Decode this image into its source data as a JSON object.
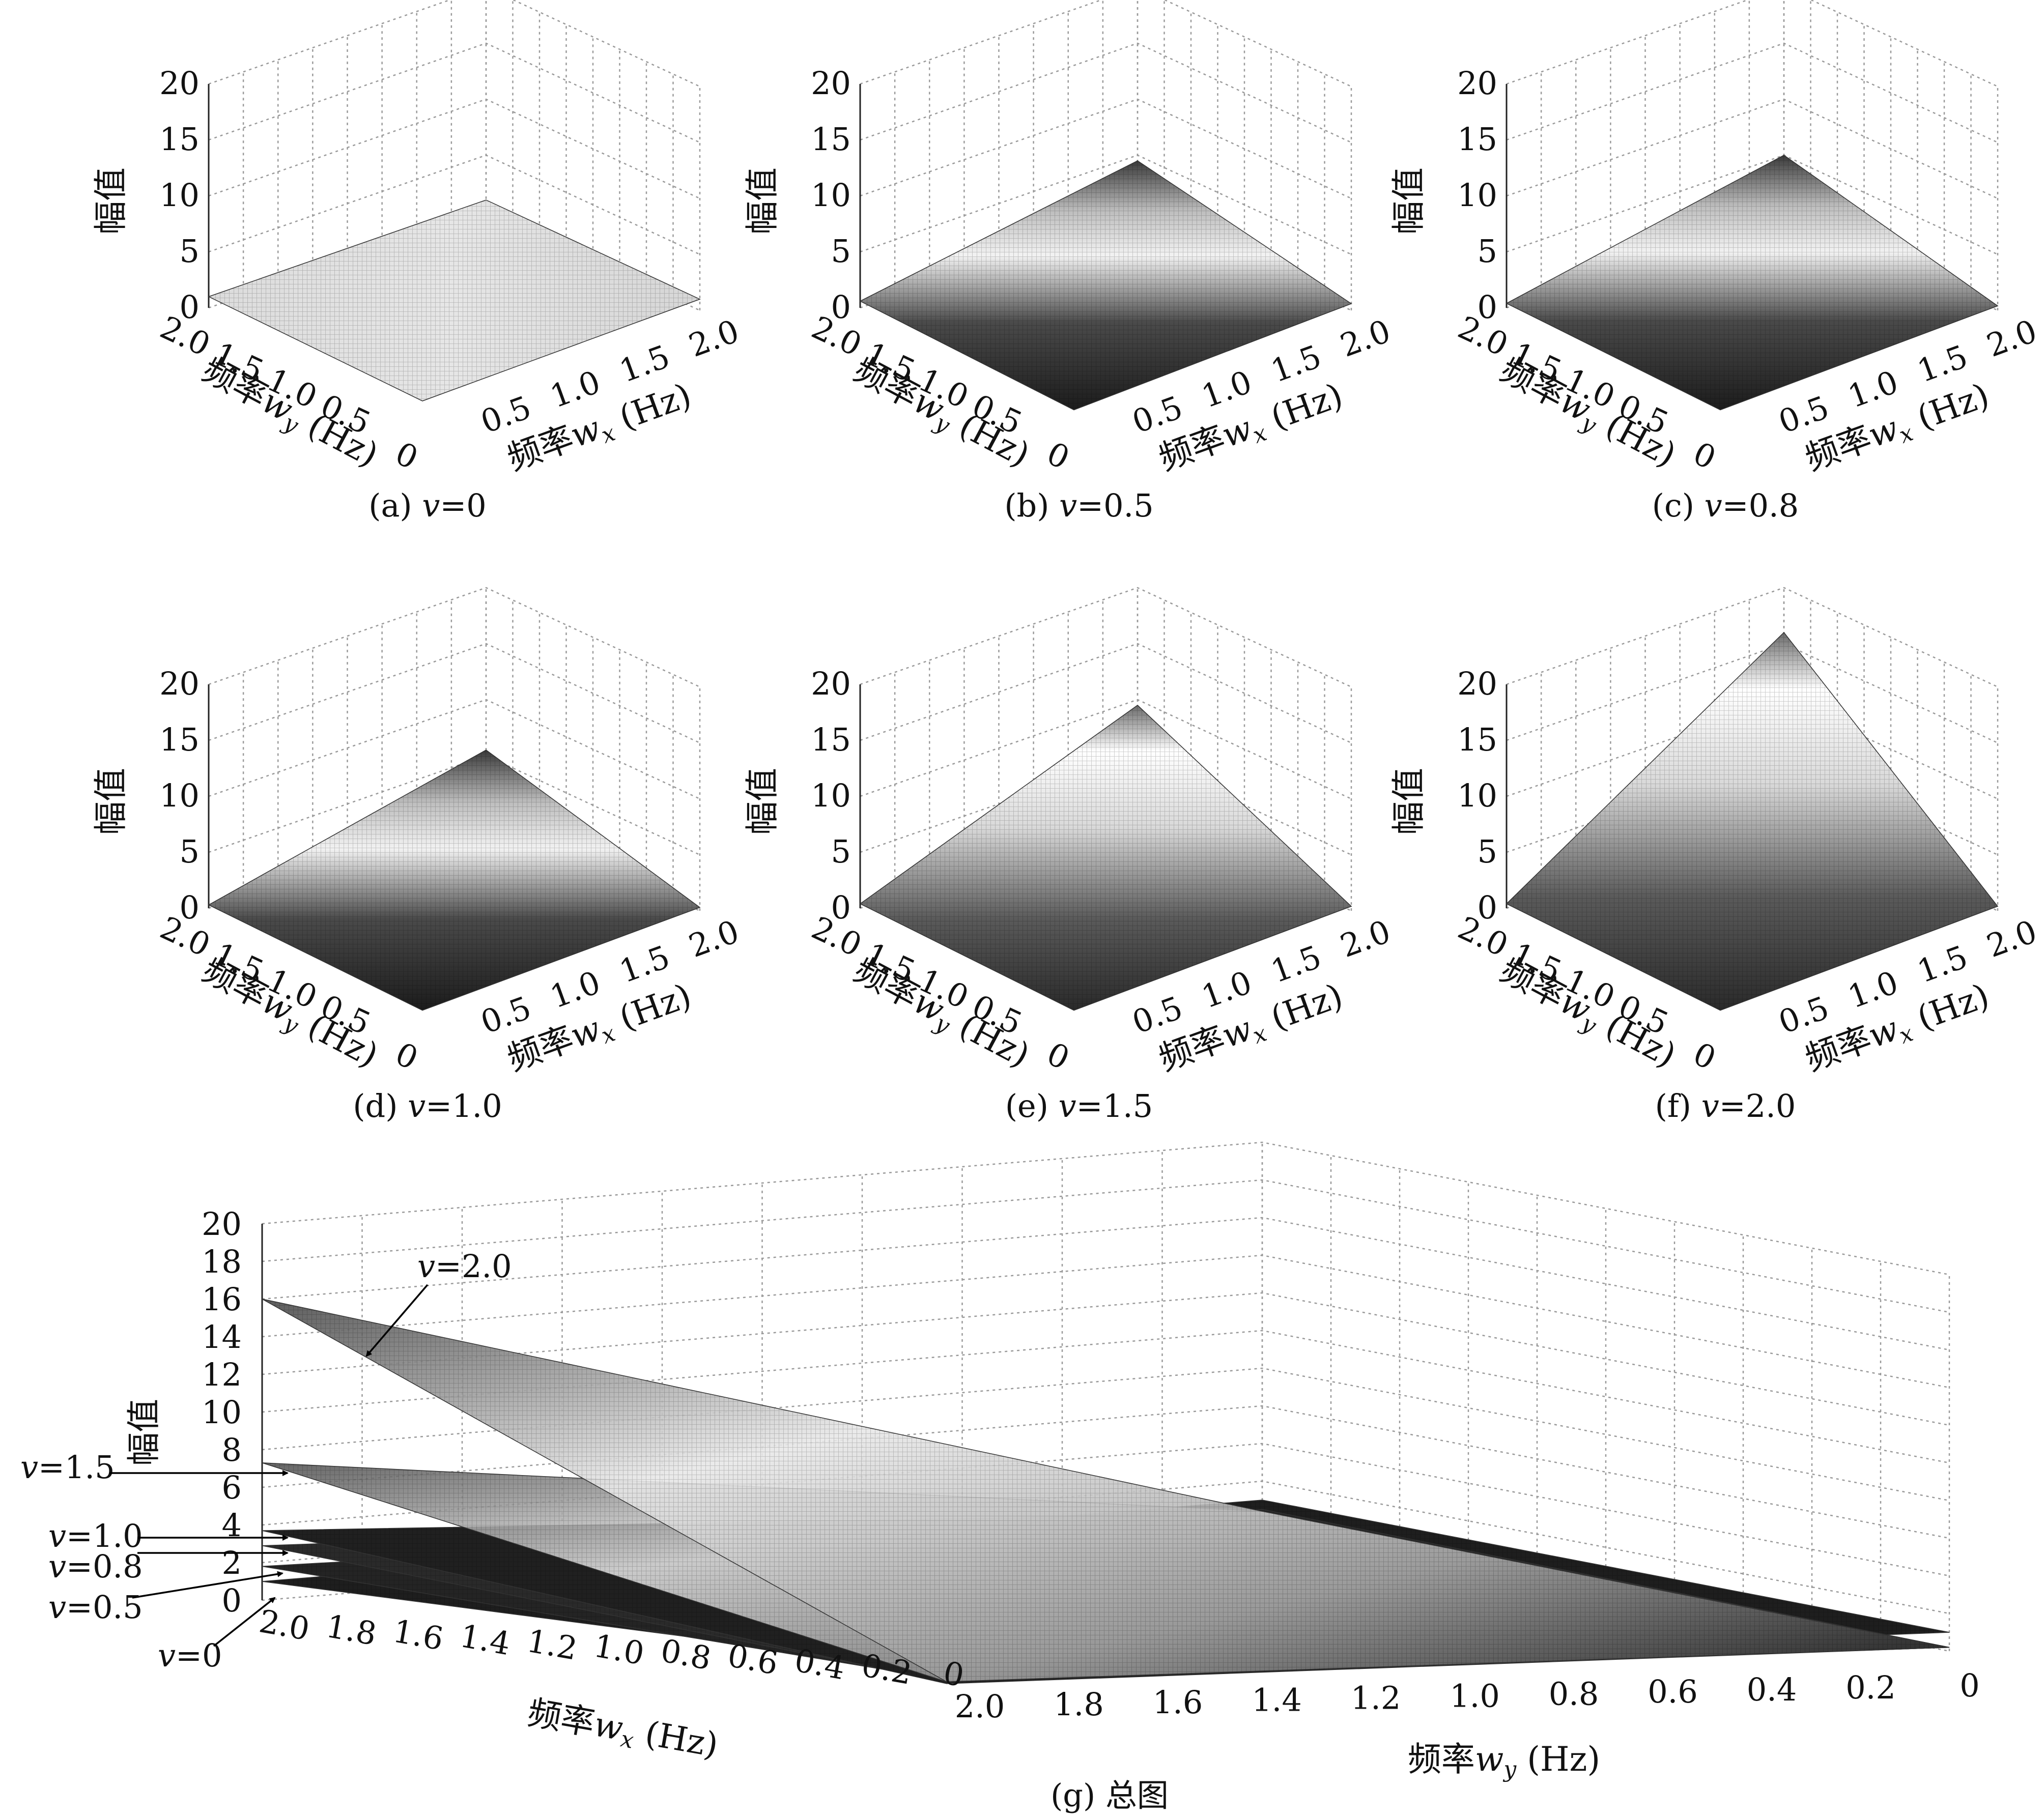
{
  "chart_data": [
    {
      "id": "a",
      "type": "surface",
      "caption": "(a) v=0",
      "v": 0,
      "zlabel": "幅值",
      "xlabel": "频率w_x (Hz)",
      "ylabel": "频率w_y (Hz)",
      "x_range": [
        0,
        2.0
      ],
      "y_range": [
        0,
        2.0
      ],
      "z_range": [
        0,
        20
      ],
      "x_ticks": [
        "0.5",
        "1.0",
        "1.5",
        "2.0"
      ],
      "y_ticks": [
        "2.0",
        "1.5",
        "1.0",
        "0.5",
        "0"
      ],
      "z_ticks": [
        "0",
        "5",
        "10",
        "15",
        "20"
      ],
      "corners_z": {
        "origin": 1.0,
        "x_max": 1.0,
        "y_max": 1.0,
        "xy_max": 1.0
      }
    },
    {
      "id": "b",
      "type": "surface",
      "caption": "(b) v=0.5",
      "v": 0.5,
      "zlabel": "幅值",
      "xlabel": "频率w_x (Hz)",
      "ylabel": "频率w_y (Hz)",
      "x_range": [
        0,
        2.0
      ],
      "y_range": [
        0,
        2.0
      ],
      "z_range": [
        0,
        20
      ],
      "x_ticks": [
        "0.5",
        "1.0",
        "1.5",
        "2.0"
      ],
      "y_ticks": [
        "2.0",
        "1.5",
        "1.0",
        "0.5",
        "0"
      ],
      "z_ticks": [
        "0",
        "5",
        "10",
        "15",
        "20"
      ],
      "corners_z": {
        "origin": 0.2,
        "x_max": 0.6,
        "y_max": 0.6,
        "xy_max": 4.5
      }
    },
    {
      "id": "c",
      "type": "surface",
      "caption": "(c) v=0.8",
      "v": 0.8,
      "zlabel": "幅值",
      "xlabel": "频率w_x (Hz)",
      "ylabel": "频率w_y (Hz)",
      "x_range": [
        0,
        2.0
      ],
      "y_range": [
        0,
        2.0
      ],
      "z_range": [
        0,
        20
      ],
      "x_ticks": [
        "0.5",
        "1.0",
        "1.5",
        "2.0"
      ],
      "y_ticks": [
        "2.0",
        "1.5",
        "1.0",
        "0.5",
        "0"
      ],
      "z_ticks": [
        "0",
        "5",
        "10",
        "15",
        "20"
      ],
      "corners_z": {
        "origin": 0.2,
        "x_max": 0.4,
        "y_max": 0.4,
        "xy_max": 5.0
      }
    },
    {
      "id": "d",
      "type": "surface",
      "caption": "(d) v=1.0",
      "v": 1.0,
      "zlabel": "幅值",
      "xlabel": "频率w_x (Hz)",
      "ylabel": "频率w_y (Hz)",
      "x_range": [
        0,
        2.0
      ],
      "y_range": [
        0,
        2.0
      ],
      "z_range": [
        0,
        20
      ],
      "x_ticks": [
        "0.5",
        "1.0",
        "1.5",
        "2.0"
      ],
      "y_ticks": [
        "2.0",
        "1.5",
        "1.0",
        "0.5",
        "0"
      ],
      "z_ticks": [
        "0",
        "5",
        "10",
        "15",
        "20"
      ],
      "corners_z": {
        "origin": 0.2,
        "x_max": 0.3,
        "y_max": 0.3,
        "xy_max": 5.5
      }
    },
    {
      "id": "e",
      "type": "surface",
      "caption": "(e) v=1.5",
      "v": 1.5,
      "zlabel": "幅值",
      "xlabel": "频率w_x (Hz)",
      "ylabel": "频率w_y (Hz)",
      "x_range": [
        0,
        2.0
      ],
      "y_range": [
        0,
        2.0
      ],
      "z_range": [
        0,
        20
      ],
      "x_ticks": [
        "0.5",
        "1.0",
        "1.5",
        "2.0"
      ],
      "y_ticks": [
        "2.0",
        "1.5",
        "1.0",
        "0.5",
        "0"
      ],
      "z_ticks": [
        "0",
        "5",
        "10",
        "15",
        "20"
      ],
      "corners_z": {
        "origin": 0.2,
        "x_max": 0.4,
        "y_max": 0.4,
        "xy_max": 9.5
      }
    },
    {
      "id": "f",
      "type": "surface",
      "caption": "(f) v=2.0",
      "v": 2.0,
      "zlabel": "幅值",
      "xlabel": "频率w_x (Hz)",
      "ylabel": "频率w_y (Hz)",
      "x_range": [
        0,
        2.0
      ],
      "y_range": [
        0,
        2.0
      ],
      "z_range": [
        0,
        20
      ],
      "x_ticks": [
        "0.5",
        "1.0",
        "1.5",
        "2.0"
      ],
      "y_ticks": [
        "2.0",
        "1.5",
        "1.0",
        "0.5",
        "0"
      ],
      "z_ticks": [
        "0",
        "5",
        "10",
        "15",
        "20"
      ],
      "corners_z": {
        "origin": 0.2,
        "x_max": 0.4,
        "y_max": 0.4,
        "xy_max": 16.0
      }
    },
    {
      "id": "g",
      "type": "surface",
      "caption": "(g) 总图",
      "zlabel": "幅值",
      "xlabel": "频率w_x (Hz)",
      "ylabel": "频率w_y (Hz)",
      "x_range": [
        0,
        2.0
      ],
      "y_range": [
        0,
        2.0
      ],
      "z_range": [
        0,
        20
      ],
      "x_ticks": [
        "2.0",
        "1.8",
        "1.6",
        "1.4",
        "1.2",
        "1.0",
        "0.8",
        "0.6",
        "0.4",
        "0.2",
        "0"
      ],
      "y_ticks": [
        "2.0",
        "1.8",
        "1.6",
        "1.4",
        "1.2",
        "1.0",
        "0.8",
        "0.6",
        "0.4",
        "0.2",
        "0"
      ],
      "z_ticks": [
        "0",
        "2",
        "4",
        "6",
        "8",
        "10",
        "12",
        "14",
        "16",
        "18",
        "20"
      ],
      "series": [
        {
          "name": "v=0",
          "corners_z": {
            "xy_max": 1.0,
            "x_max": 1.0,
            "y_max": 1.0,
            "origin": 1.0
          }
        },
        {
          "name": "v=0.5",
          "corners_z": {
            "xy_max": 1.8,
            "x_max": 0.5,
            "y_max": 0.5,
            "origin": 0.2
          }
        },
        {
          "name": "v=0.8",
          "corners_z": {
            "xy_max": 2.9,
            "x_max": 0.4,
            "y_max": 0.4,
            "origin": 0.2
          }
        },
        {
          "name": "v=1.0",
          "corners_z": {
            "xy_max": 3.7,
            "x_max": 0.3,
            "y_max": 0.3,
            "origin": 0.2
          }
        },
        {
          "name": "v=1.5",
          "corners_z": {
            "xy_max": 7.3,
            "x_max": 0.4,
            "y_max": 0.4,
            "origin": 0.2
          }
        },
        {
          "name": "v=2.0",
          "corners_z": {
            "xy_max": 16.0,
            "x_max": 0.4,
            "y_max": 0.4,
            "origin": 0.2
          }
        }
      ],
      "annotations": [
        "v=2.0",
        "v=1.5",
        "v=1.0",
        "v=0.8",
        "v=0.5",
        "v=0"
      ]
    }
  ]
}
